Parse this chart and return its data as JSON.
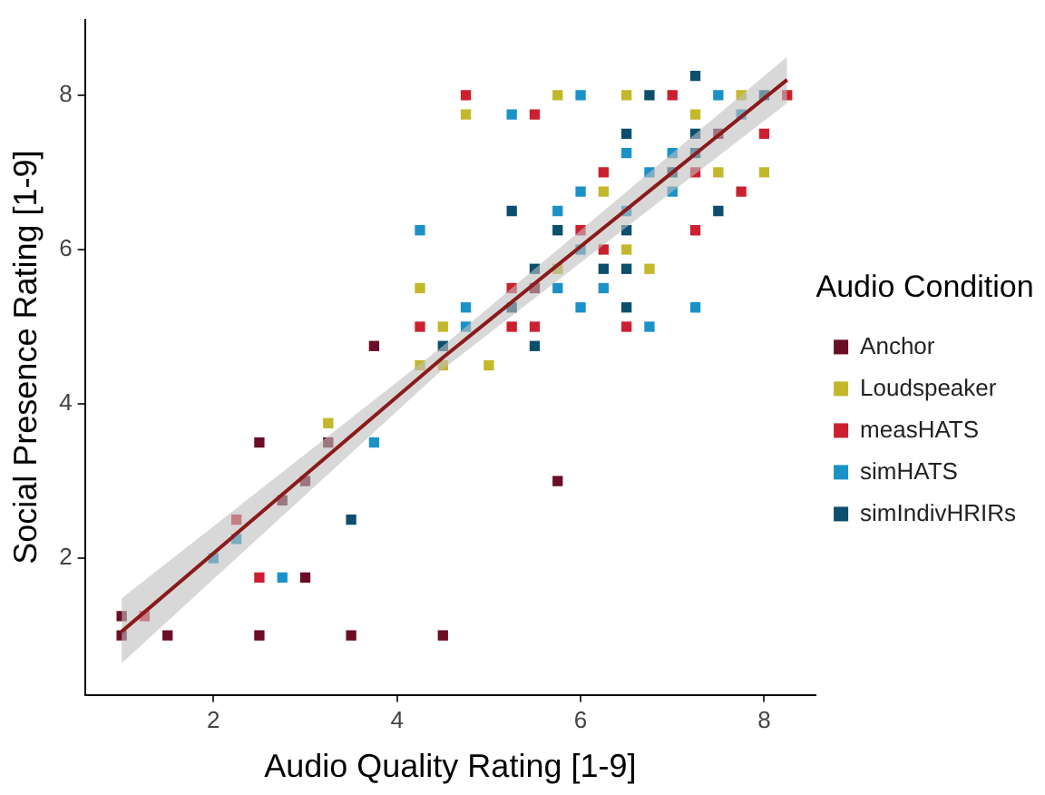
{
  "chart_data": {
    "type": "scatter",
    "xlabel": "Audio Quality Rating [1-9]",
    "ylabel": "Social Presence Rating [1-9]",
    "legend_title": "Audio Condition",
    "legend": "right",
    "marker": "square",
    "grid": false,
    "xlim": [
      0.6,
      8.56
    ],
    "ylim": [
      0.23,
      8.98
    ],
    "xticks": [
      2,
      4,
      6,
      8
    ],
    "yticks": [
      2,
      4,
      6,
      8
    ],
    "series": [
      {
        "name": "Anchor",
        "color": "#6a0d25",
        "x": [
          1,
          1,
          1.5,
          2.5,
          4.5,
          3.5,
          2.5,
          3,
          3.75,
          5.75,
          2.75,
          3,
          3.25,
          5.5,
          7.5
        ],
        "values": [
          1,
          1.25,
          1,
          1,
          1,
          1,
          3.5,
          1.75,
          4.75,
          3,
          2.75,
          3,
          3.5,
          5.5,
          7.5
        ]
      },
      {
        "name": "Loudspeaker",
        "color": "#c3b82b",
        "x": [
          3.25,
          4.25,
          4.5,
          5,
          4.25,
          4.5,
          5.75,
          6.75,
          6.5,
          6.25,
          7.5,
          8,
          4.75,
          7.25,
          5.75,
          6.5,
          7.75
        ],
        "values": [
          3.75,
          4.5,
          4.5,
          4.5,
          5.5,
          5,
          5.75,
          5.75,
          6,
          6.75,
          7,
          7,
          7.75,
          7.75,
          8,
          8,
          8
        ]
      },
      {
        "name": "measHATS",
        "color": "#cc2030",
        "x": [
          1.25,
          2.25,
          2.5,
          4.25,
          5.25,
          5.5,
          6.5,
          5.25,
          6.25,
          6,
          7.25,
          6.25,
          7.25,
          7.75,
          8,
          5.5,
          4.75,
          7,
          8.25
        ],
        "values": [
          1.25,
          2.5,
          1.75,
          5,
          5,
          5,
          5,
          5.5,
          6,
          6.25,
          6.25,
          7,
          7,
          6.75,
          7.5,
          7.75,
          8,
          8,
          8
        ]
      },
      {
        "name": "simHATS",
        "color": "#1a92c8",
        "x": [
          2,
          2.25,
          2.75,
          3.75,
          4.75,
          6.75,
          4.75,
          6,
          7.25,
          5.75,
          6.25,
          6,
          4.25,
          5.75,
          6.5,
          6,
          7,
          6.75,
          6.5,
          7,
          5.25,
          7.75,
          6,
          7.5
        ],
        "values": [
          2,
          2.25,
          1.75,
          3.5,
          5,
          5,
          5.25,
          5.25,
          5.25,
          5.5,
          5.5,
          6,
          6.25,
          6.5,
          6.5,
          6.75,
          6.75,
          7,
          7.25,
          7.25,
          7.75,
          7.75,
          8,
          8
        ]
      },
      {
        "name": "simIndivHRIRs",
        "color": "#0b4e6e",
        "x": [
          3.5,
          4.5,
          5.5,
          5.25,
          6.5,
          5.5,
          6.25,
          6.5,
          5.75,
          6.5,
          5.25,
          7.5,
          7,
          7.25,
          6.5,
          7.25,
          6.75,
          8,
          7.25
        ],
        "values": [
          2.5,
          4.75,
          4.75,
          5.25,
          5.25,
          5.75,
          5.75,
          5.75,
          6.25,
          6.25,
          6.5,
          6.5,
          7,
          7.25,
          7.5,
          7.5,
          8,
          8,
          8.25
        ]
      },
      {
        "type": "line",
        "marker": "none",
        "color": "#8b1a1a",
        "x": [
          1,
          4.5,
          8.25
        ],
        "values": [
          1.05,
          4.6,
          8.2
        ],
        "lower": [
          0.64,
          4.45,
          7.9
        ],
        "upper": [
          1.48,
          4.75,
          8.5
        ]
      }
    ]
  }
}
